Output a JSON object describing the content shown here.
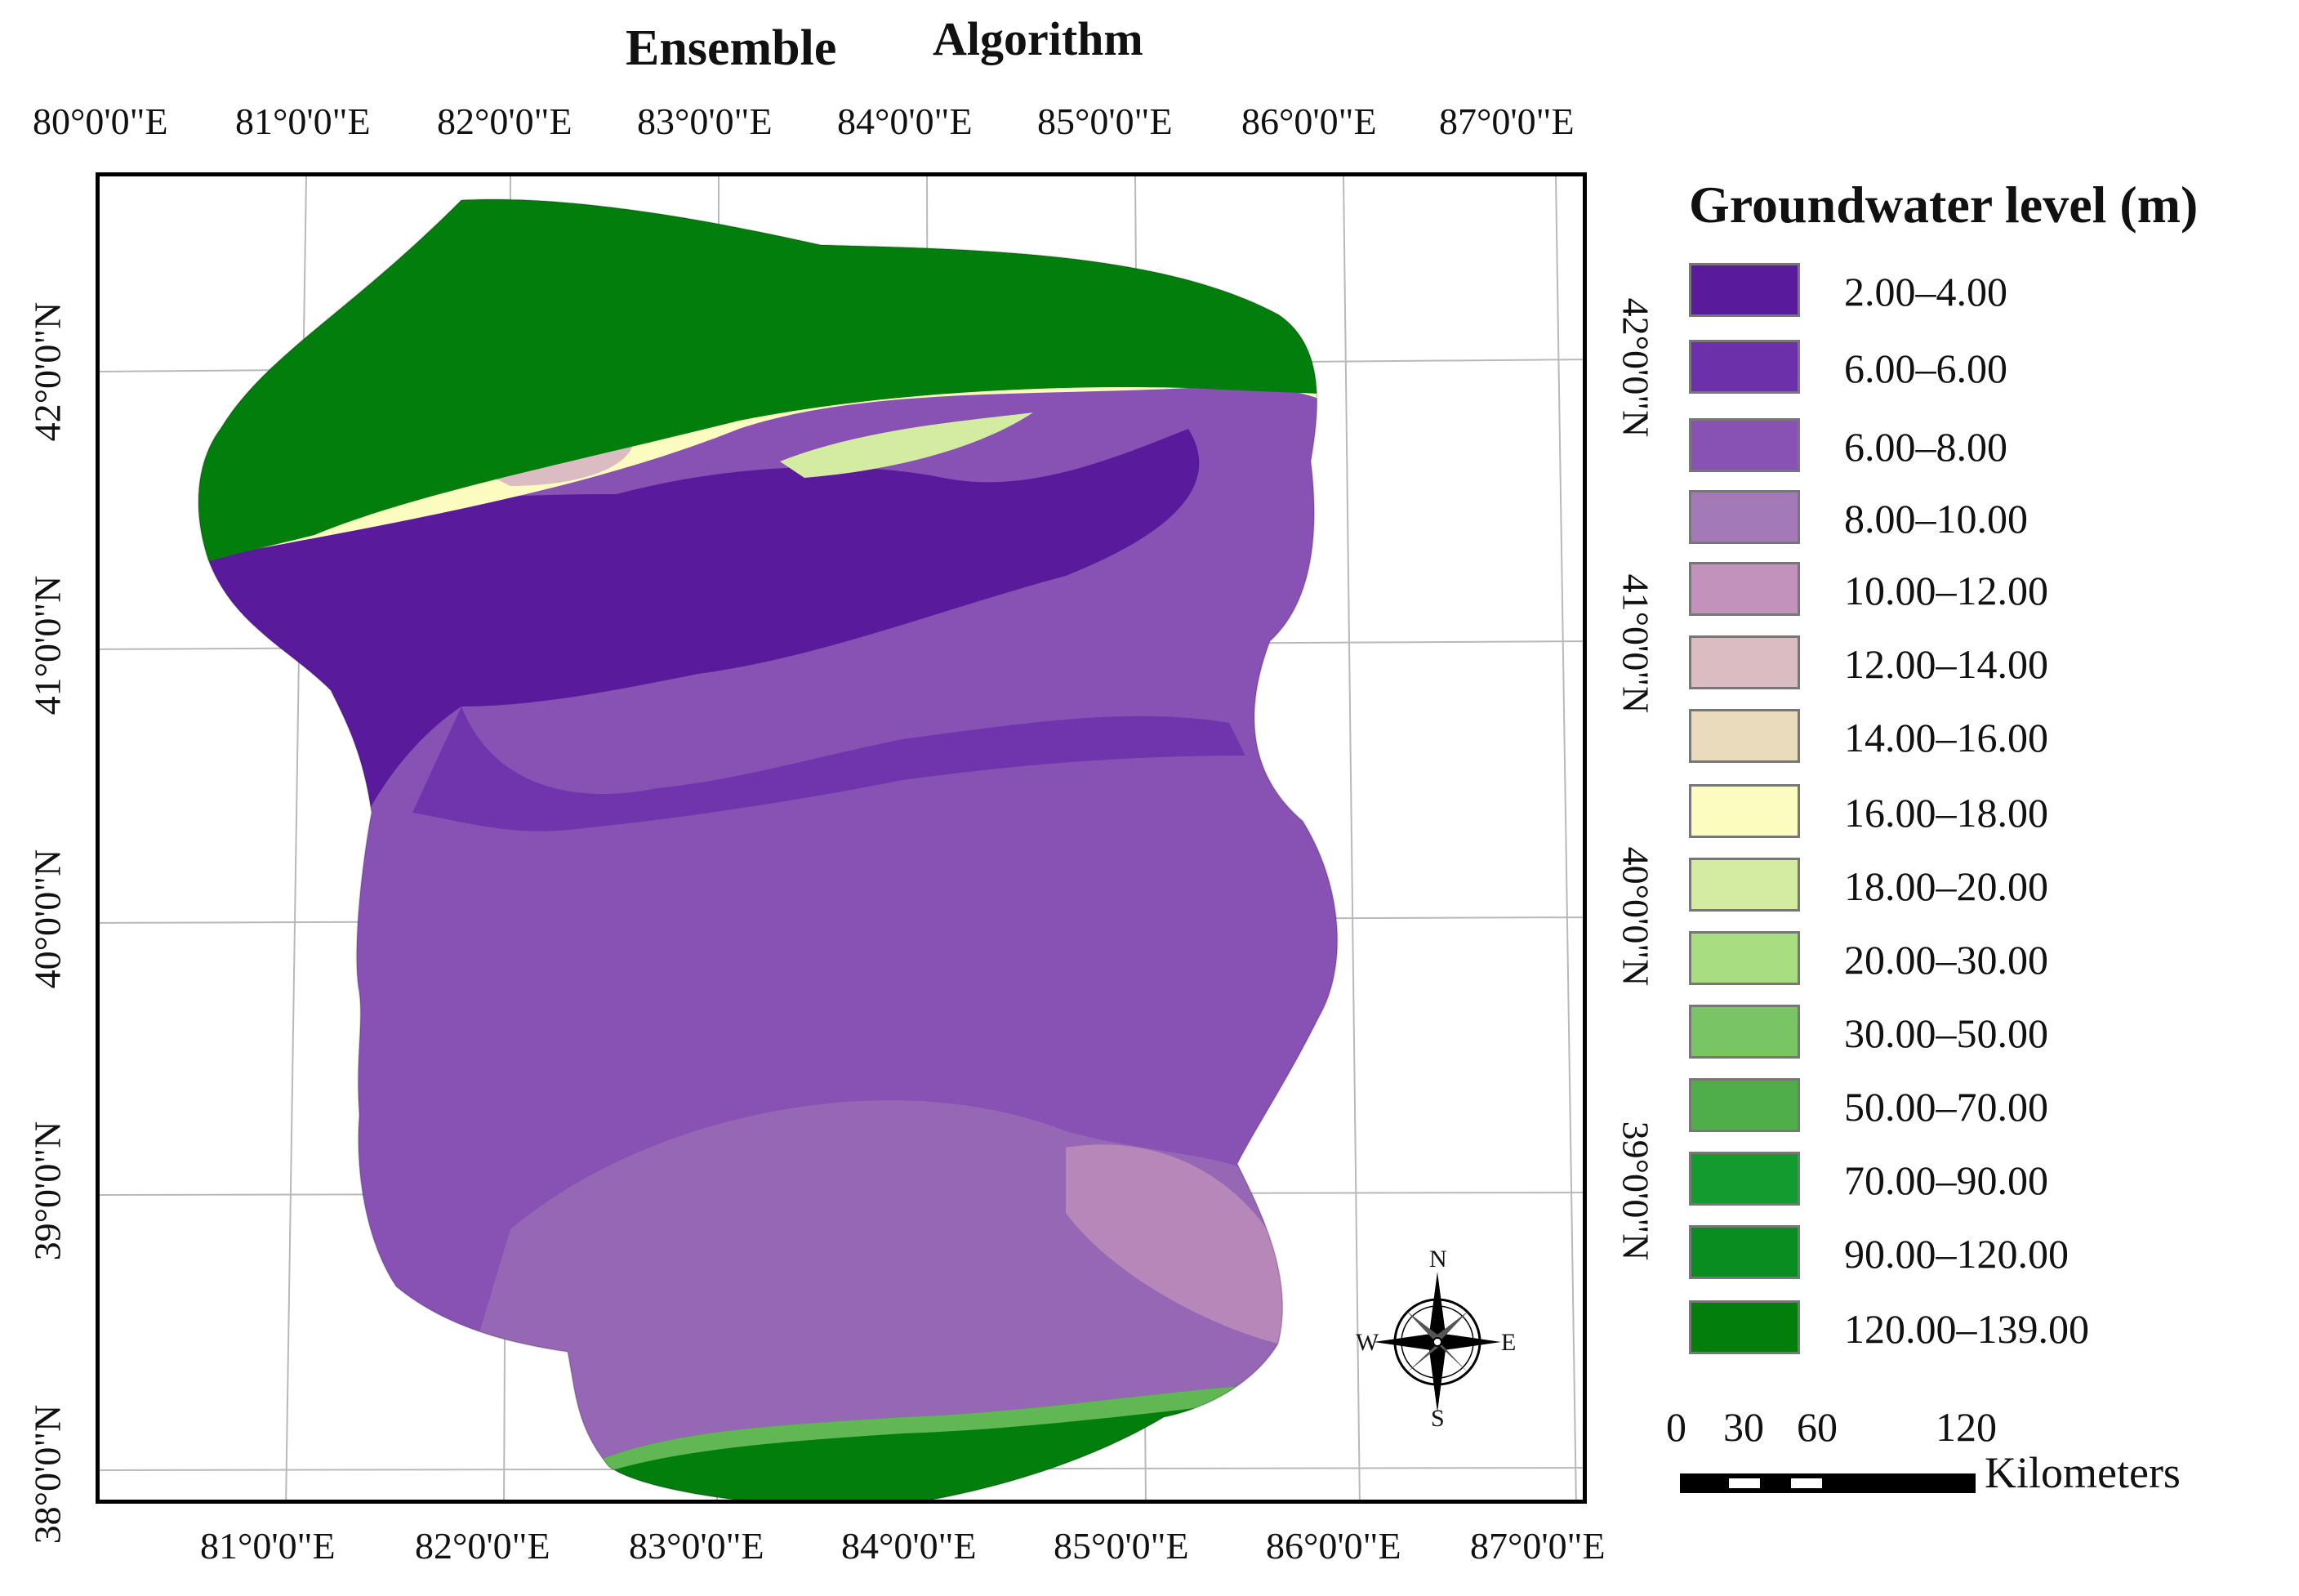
{
  "titles": [
    "Ensemble",
    "Algorithm"
  ],
  "top_ticks": [
    "80°0'0\"E",
    "81°0'0\"E",
    "82°0'0\"E",
    "83°0'0\"E",
    "84°0'0\"E",
    "85°0'0\"E",
    "86°0'0\"E",
    "87°0'0\"E"
  ],
  "bottom_ticks": [
    "81°0'0\"E",
    "82°0'0\"E",
    "83°0'0\"E",
    "84°0'0\"E",
    "85°0'0\"E",
    "86°0'0\"E",
    "87°0'0\"E"
  ],
  "left_ticks": [
    "42°0'0\"N",
    "41°0'0\"N",
    "40°0'0\"N",
    "39°0'0\"N",
    "38°0'0\"N"
  ],
  "right_ticks": [
    "42°0'0\"N",
    "41°0'0\"N",
    "40°0'0\"N",
    "39°0'0\"N"
  ],
  "legend": {
    "title": "Groundwater level (m)",
    "items": [
      {
        "label": "2.00–4.00",
        "color": "#5a1a9c"
      },
      {
        "label": "6.00–6.00",
        "color": "#6c30aa"
      },
      {
        "label": "6.00–8.00",
        "color": "#8752b4"
      },
      {
        "label": "8.00–10.00",
        "color": "#a379b7"
      },
      {
        "label": "10.00–12.00",
        "color": "#c392bc"
      },
      {
        "label": "12.00–14.00",
        "color": "#dbbcc3"
      },
      {
        "label": "14.00–16.00",
        "color": "#eadbbd"
      },
      {
        "label": "16.00–18.00",
        "color": "#fdfcc0"
      },
      {
        "label": "18.00–20.00",
        "color": "#d3eca2"
      },
      {
        "label": "20.00–30.00",
        "color": "#a9dd82"
      },
      {
        "label": "30.00–50.00",
        "color": "#79c565"
      },
      {
        "label": "50.00–70.00",
        "color": "#4fae49"
      },
      {
        "label": "70.00–90.00",
        "color": "#149b30"
      },
      {
        "label": "90.00–120.00",
        "color": "#0a8d20"
      },
      {
        "label": "120.00–139.00",
        "color": "#027e0c"
      }
    ]
  },
  "scale": {
    "labels": [
      "0",
      "30",
      "60",
      "120"
    ],
    "units": "Kilometers"
  },
  "north_arrow": {
    "n": "N",
    "s": "S",
    "e": "E",
    "w": "W"
  }
}
